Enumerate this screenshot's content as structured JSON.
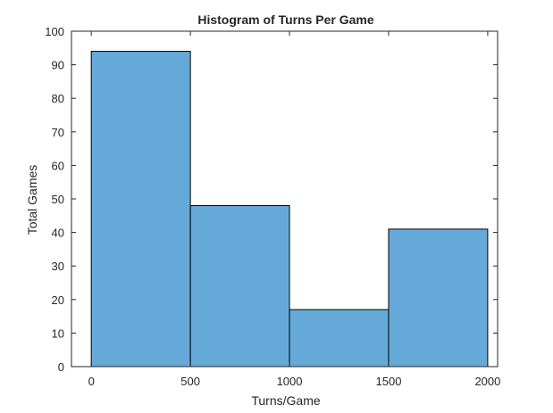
{
  "chart_data": {
    "type": "bar",
    "title": "Histogram of Turns Per Game",
    "xlabel": "Turns/Game",
    "ylabel": "Total Games",
    "bin_edges": [
      0,
      500,
      1000,
      1500,
      2000
    ],
    "values": [
      94,
      48,
      17,
      41
    ],
    "xlim": [
      -100,
      2050
    ],
    "ylim": [
      0,
      100
    ],
    "xticks": [
      0,
      500,
      1000,
      1500,
      2000
    ],
    "yticks": [
      0,
      10,
      20,
      30,
      40,
      50,
      60,
      70,
      80,
      90,
      100
    ],
    "bar_color": "#65a9d8",
    "edge_color": "#000000",
    "grid": false
  }
}
